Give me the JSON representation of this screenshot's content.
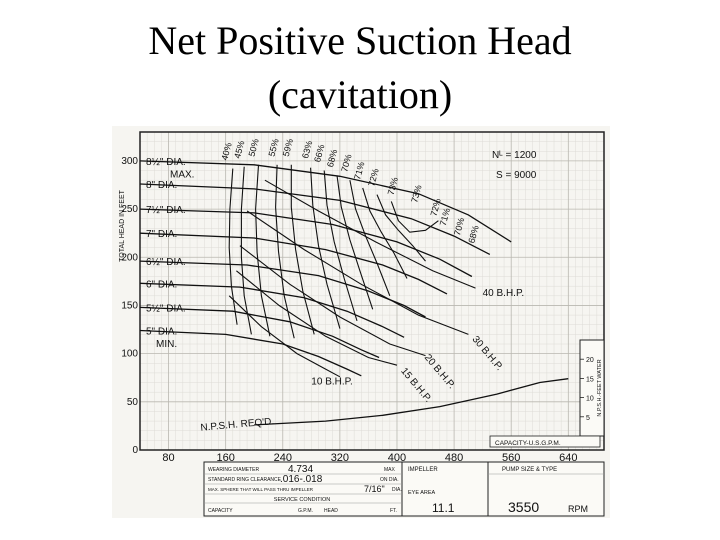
{
  "slide": {
    "title_line1": "Net Positive Suction Head",
    "title_line2": "(cavitation)"
  },
  "chart_data": {
    "type": "line",
    "ylabel": "TOTAL HEAD IN FEET",
    "xlabel": "CAPACITY-U.S.G.P.M.",
    "x_ticks": [
      80,
      160,
      240,
      320,
      400,
      480,
      560,
      640
    ],
    "y_ticks": [
      0,
      50,
      100,
      150,
      200,
      250,
      300
    ],
    "xlim": [
      40,
      690
    ],
    "ylim": [
      0,
      330
    ],
    "right_axis": {
      "label": "N.P.S.H.-FEET WATER",
      "ticks": [
        5,
        10,
        15,
        20
      ],
      "range": [
        0,
        25
      ]
    },
    "specs": {
      "ns": "Nᴸ = 1200",
      "s": "S = 9000"
    },
    "head_curves": [
      {
        "label": "8½\" DIA.",
        "points": [
          [
            40,
            300
          ],
          [
            200,
            296
          ],
          [
            320,
            284
          ],
          [
            430,
            266
          ],
          [
            500,
            244
          ],
          [
            560,
            216
          ]
        ]
      },
      {
        "label": "8\" DIA.",
        "points": [
          [
            40,
            276
          ],
          [
            200,
            271
          ],
          [
            320,
            259
          ],
          [
            420,
            240
          ],
          [
            480,
            222
          ],
          [
            530,
            203
          ]
        ]
      },
      {
        "label": "7½\" DIA.",
        "points": [
          [
            40,
            250
          ],
          [
            200,
            246
          ],
          [
            310,
            234
          ],
          [
            400,
            216
          ],
          [
            460,
            198
          ],
          [
            505,
            180
          ]
        ]
      },
      {
        "label": "7\" DIA.",
        "points": [
          [
            40,
            225
          ],
          [
            200,
            220
          ],
          [
            300,
            208
          ],
          [
            380,
            192
          ],
          [
            430,
            177
          ],
          [
            470,
            162
          ]
        ]
      },
      {
        "label": "6½\" DIA.",
        "points": [
          [
            40,
            196
          ],
          [
            190,
            192
          ],
          [
            290,
            181
          ],
          [
            360,
            165
          ],
          [
            410,
            150
          ],
          [
            440,
            138
          ]
        ]
      },
      {
        "label": "6\" DIA.",
        "points": [
          [
            40,
            173
          ],
          [
            180,
            169
          ],
          [
            270,
            158
          ],
          [
            330,
            144
          ],
          [
            380,
            128
          ],
          [
            410,
            117
          ]
        ]
      },
      {
        "label": "5½\" DIA.",
        "points": [
          [
            40,
            148
          ],
          [
            170,
            144
          ],
          [
            250,
            133
          ],
          [
            310,
            118
          ],
          [
            350,
            104
          ],
          [
            375,
            96
          ]
        ]
      },
      {
        "label": "5\" DIA.",
        "points": [
          [
            40,
            124
          ],
          [
            160,
            120
          ],
          [
            240,
            110
          ],
          [
            290,
            97
          ],
          [
            330,
            84
          ],
          [
            350,
            77
          ]
        ]
      }
    ],
    "diameter_labels": {
      "max": "MAX.",
      "min": "MIN.",
      "extra": [
        {
          "text": "8½\" DIA.",
          "y": 300
        },
        {
          "text": "8\" DIA.",
          "y": 276
        },
        {
          "text": "7½\" DIA.",
          "y": 250
        },
        {
          "text": "7\" DIA.",
          "y": 225
        },
        {
          "text": "6½\" DIA.",
          "y": 196
        },
        {
          "text": "6\" DIA.",
          "y": 173
        },
        {
          "text": "5½\" DIA.",
          "y": 148
        },
        {
          "text": "5\" DIA.",
          "y": 124
        }
      ]
    },
    "efficiency_labels": [
      "40%",
      "45%",
      "50%",
      "55%",
      "59%",
      "63%",
      "66%",
      "68%",
      "70%",
      "71%",
      "72%",
      "73%",
      "73%",
      "72%",
      "71%",
      "70%",
      "68%"
    ],
    "efficiency_top": [
      {
        "text": "40%",
        "x": 162,
        "y": 300
      },
      {
        "text": "45%",
        "x": 180,
        "y": 302
      },
      {
        "text": "50%",
        "x": 200,
        "y": 304
      },
      {
        "text": "55%",
        "x": 228,
        "y": 304
      },
      {
        "text": "59%",
        "x": 248,
        "y": 304
      },
      {
        "text": "63%",
        "x": 275,
        "y": 302
      },
      {
        "text": "66%",
        "x": 292,
        "y": 298
      },
      {
        "text": "68%",
        "x": 310,
        "y": 293
      },
      {
        "text": "70%",
        "x": 330,
        "y": 288
      },
      {
        "text": "71%",
        "x": 348,
        "y": 280
      },
      {
        "text": "72%",
        "x": 368,
        "y": 273
      },
      {
        "text": "73%",
        "x": 395,
        "y": 264
      }
    ],
    "efficiency_right": [
      {
        "text": "73%",
        "x": 428,
        "y": 256
      },
      {
        "text": "72%",
        "x": 455,
        "y": 242
      },
      {
        "text": "71%",
        "x": 468,
        "y": 232
      },
      {
        "text": "70%",
        "x": 488,
        "y": 222
      },
      {
        "text": "68%",
        "x": 508,
        "y": 214
      }
    ],
    "efficiency_curves": [
      {
        "points": [
          [
            170,
            292
          ],
          [
            166,
            250
          ],
          [
            165,
            210
          ],
          [
            168,
            170
          ],
          [
            176,
            130
          ]
        ]
      },
      {
        "points": [
          [
            186,
            294
          ],
          [
            182,
            250
          ],
          [
            182,
            200
          ],
          [
            186,
            160
          ],
          [
            196,
            120
          ]
        ]
      },
      {
        "points": [
          [
            206,
            296
          ],
          [
            202,
            250
          ],
          [
            204,
            205
          ],
          [
            210,
            160
          ],
          [
            222,
            118
          ]
        ]
      },
      {
        "points": [
          [
            232,
            296
          ],
          [
            230,
            252
          ],
          [
            234,
            206
          ],
          [
            242,
            160
          ],
          [
            256,
            116
          ]
        ]
      },
      {
        "points": [
          [
            252,
            296
          ],
          [
            252,
            252
          ],
          [
            258,
            208
          ],
          [
            268,
            165
          ],
          [
            284,
            120
          ]
        ]
      },
      {
        "points": [
          [
            279,
            293
          ],
          [
            282,
            254
          ],
          [
            290,
            212
          ],
          [
            302,
            172
          ],
          [
            320,
            126
          ]
        ]
      },
      {
        "points": [
          [
            298,
            290
          ],
          [
            302,
            254
          ],
          [
            312,
            216
          ],
          [
            326,
            178
          ],
          [
            344,
            134
          ]
        ]
      },
      {
        "points": [
          [
            316,
            285
          ],
          [
            322,
            252
          ],
          [
            334,
            218
          ],
          [
            348,
            186
          ],
          [
            366,
            146
          ]
        ]
      },
      {
        "points": [
          [
            334,
            280
          ],
          [
            342,
            250
          ],
          [
            356,
            222
          ],
          [
            372,
            194
          ],
          [
            390,
            160
          ]
        ]
      },
      {
        "points": [
          [
            352,
            272
          ],
          [
            362,
            248
          ],
          [
            378,
            226
          ],
          [
            396,
            204
          ],
          [
            414,
            178
          ]
        ]
      },
      {
        "points": [
          [
            372,
            265
          ],
          [
            384,
            244
          ],
          [
            402,
            228
          ],
          [
            422,
            212
          ],
          [
            440,
            196
          ]
        ]
      },
      {
        "points": [
          [
            392,
            258
          ],
          [
            402,
            238
          ],
          [
            418,
            226
          ],
          [
            440,
            228
          ],
          [
            458,
            238
          ]
        ]
      }
    ],
    "bhp_curves": [
      {
        "label": "40 B.H.P.",
        "points": [
          [
            215,
            280
          ],
          [
            290,
            248
          ],
          [
            370,
            216
          ],
          [
            450,
            186
          ],
          [
            510,
            168
          ]
        ]
      },
      {
        "label": "30 B.H.P.",
        "points": [
          [
            190,
            248
          ],
          [
            270,
            208
          ],
          [
            350,
            172
          ],
          [
            430,
            140
          ],
          [
            500,
            120
          ]
        ]
      },
      {
        "label": "20 B.H.P.",
        "points": [
          [
            180,
            212
          ],
          [
            250,
            172
          ],
          [
            320,
            138
          ],
          [
            390,
            110
          ],
          [
            440,
            98
          ]
        ]
      },
      {
        "label": "15 B.H.P.",
        "points": [
          [
            175,
            186
          ],
          [
            235,
            150
          ],
          [
            300,
            118
          ],
          [
            360,
            96
          ],
          [
            400,
            88
          ]
        ]
      },
      {
        "label": "10 B.H.P.",
        "points": [
          [
            165,
            160
          ],
          [
            210,
            128
          ],
          [
            260,
            100
          ],
          [
            300,
            84
          ],
          [
            320,
            76
          ]
        ]
      }
    ],
    "bhp_labels": [
      {
        "text": "40 B.H.P.",
        "x": 520,
        "y": 160
      },
      {
        "text": "30 B.H.P.",
        "x": 505,
        "y": 115
      },
      {
        "text": "20 B.H.P.",
        "x": 438,
        "y": 96
      },
      {
        "text": "15 B.H.P.",
        "x": 405,
        "y": 82
      },
      {
        "text": "10 B.H.P.",
        "x": 280,
        "y": 68
      }
    ],
    "npsh_curve": {
      "label": "N.P.S.H. REQ'D.",
      "points": [
        [
          200,
          26
        ],
        [
          300,
          30
        ],
        [
          380,
          36
        ],
        [
          460,
          45
        ],
        [
          540,
          58
        ],
        [
          600,
          70
        ],
        [
          640,
          74
        ]
      ]
    }
  },
  "info_block": {
    "wearing_diameter_label": "WEARING DIAMETER",
    "wearing_diameter_value": "4.734",
    "wearing_unit": "MAX",
    "ring_clearance_label": "STANDARD RING CLEARANCE",
    "ring_clearance_value": ".016-.018",
    "ring_clearance_unit": "ON DIA.",
    "sphere_label": "MAX. SPHERE THAT WILL PASS THRU IMPELLER",
    "sphere_value": "7/16\"",
    "sphere_unit": "DIA.",
    "service_condition": "SERVICE CONDITION",
    "capacity_label": "CAPACITY",
    "gpm_label": "G.P.M.",
    "head_label": "HEAD",
    "ft_label": "FT.",
    "impeller_label": "IMPELLER",
    "eye_area_label": "EYE AREA",
    "eye_area_value": "11.1",
    "pump_size_label": "PUMP SIZE & TYPE",
    "rpm_value": "3550",
    "rpm_label": "RPM"
  }
}
